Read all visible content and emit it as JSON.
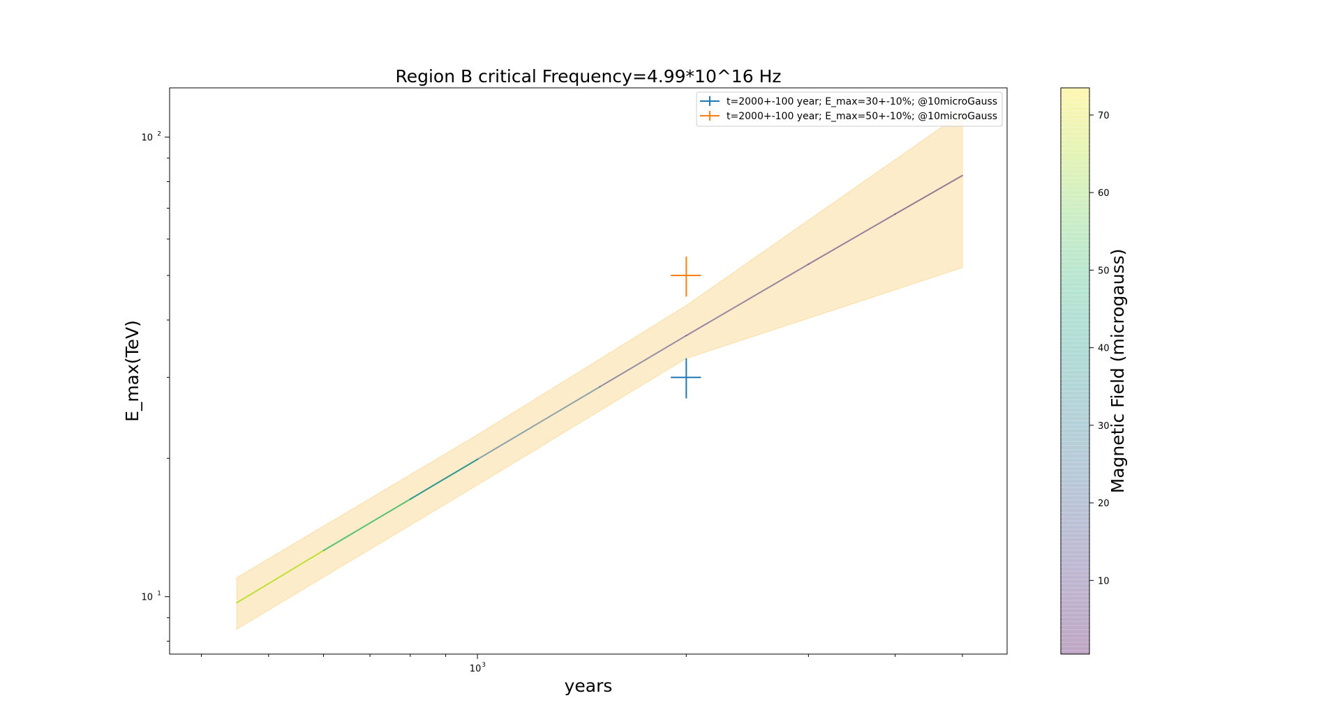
{
  "chart_data": {
    "type": "line",
    "title": "Region B critical Frequency=4.99*10^16 Hz",
    "xlabel": "years",
    "ylabel": "E_max(TeV)",
    "xscale": "log",
    "yscale": "log",
    "xlim": [
      360,
      5800
    ],
    "ylim": [
      7.5,
      128
    ],
    "x_ticks": [
      {
        "base": "10",
        "exp": "3",
        "value": 1000
      }
    ],
    "x_minor_ticks": [
      400,
      500,
      600,
      700,
      800,
      900,
      2000,
      3000,
      4000,
      5000
    ],
    "y_ticks": [
      {
        "base": "10",
        "exp": "1",
        "value": 10
      },
      {
        "base": "10",
        "exp": "2",
        "value": 100
      }
    ],
    "y_minor_ticks": [
      8,
      9,
      20,
      30,
      40,
      50,
      60,
      70,
      80,
      90
    ],
    "model_line": {
      "x": [
        450,
        600,
        800,
        1000,
        1500,
        2000,
        3000,
        4000,
        5000
      ],
      "y": [
        9.7,
        12.6,
        16.3,
        19.9,
        28.6,
        37.0,
        52.9,
        68.0,
        82.5
      ],
      "magnetic_field": [
        72,
        60,
        45,
        30,
        18,
        13,
        9,
        6,
        4
      ]
    },
    "model_band": {
      "x": [
        450,
        1000,
        2000,
        5000
      ],
      "y_low": [
        8.5,
        17.5,
        33.0,
        52.0
      ],
      "y_high": [
        11.0,
        22.5,
        43.0,
        113.0
      ],
      "color": "#fdebc8"
    },
    "series": [
      {
        "name": "t=2000+-100 year; E_max=30+-10%; @10microGauss",
        "color": "#1f77b4",
        "x": 2000,
        "x_err": 100,
        "y": 30,
        "y_err_frac": 0.1
      },
      {
        "name": "t=2000+-100 year; E_max=50+-10%; @10microGauss",
        "color": "#ff7f0e",
        "x": 2000,
        "x_err": 100,
        "y": 50,
        "y_err_frac": 0.1
      }
    ],
    "legend_position": "top-right",
    "colorbar": {
      "label": "Magnetic Field (microgauss)",
      "range": [
        0.5,
        73.5
      ],
      "ticks": [
        "10",
        "20",
        "30",
        "40",
        "50",
        "60",
        "70"
      ],
      "tick_values": [
        10,
        20,
        30,
        40,
        50,
        60,
        70
      ],
      "colormap": "viridis",
      "alpha": 0.35
    },
    "grid": false
  }
}
